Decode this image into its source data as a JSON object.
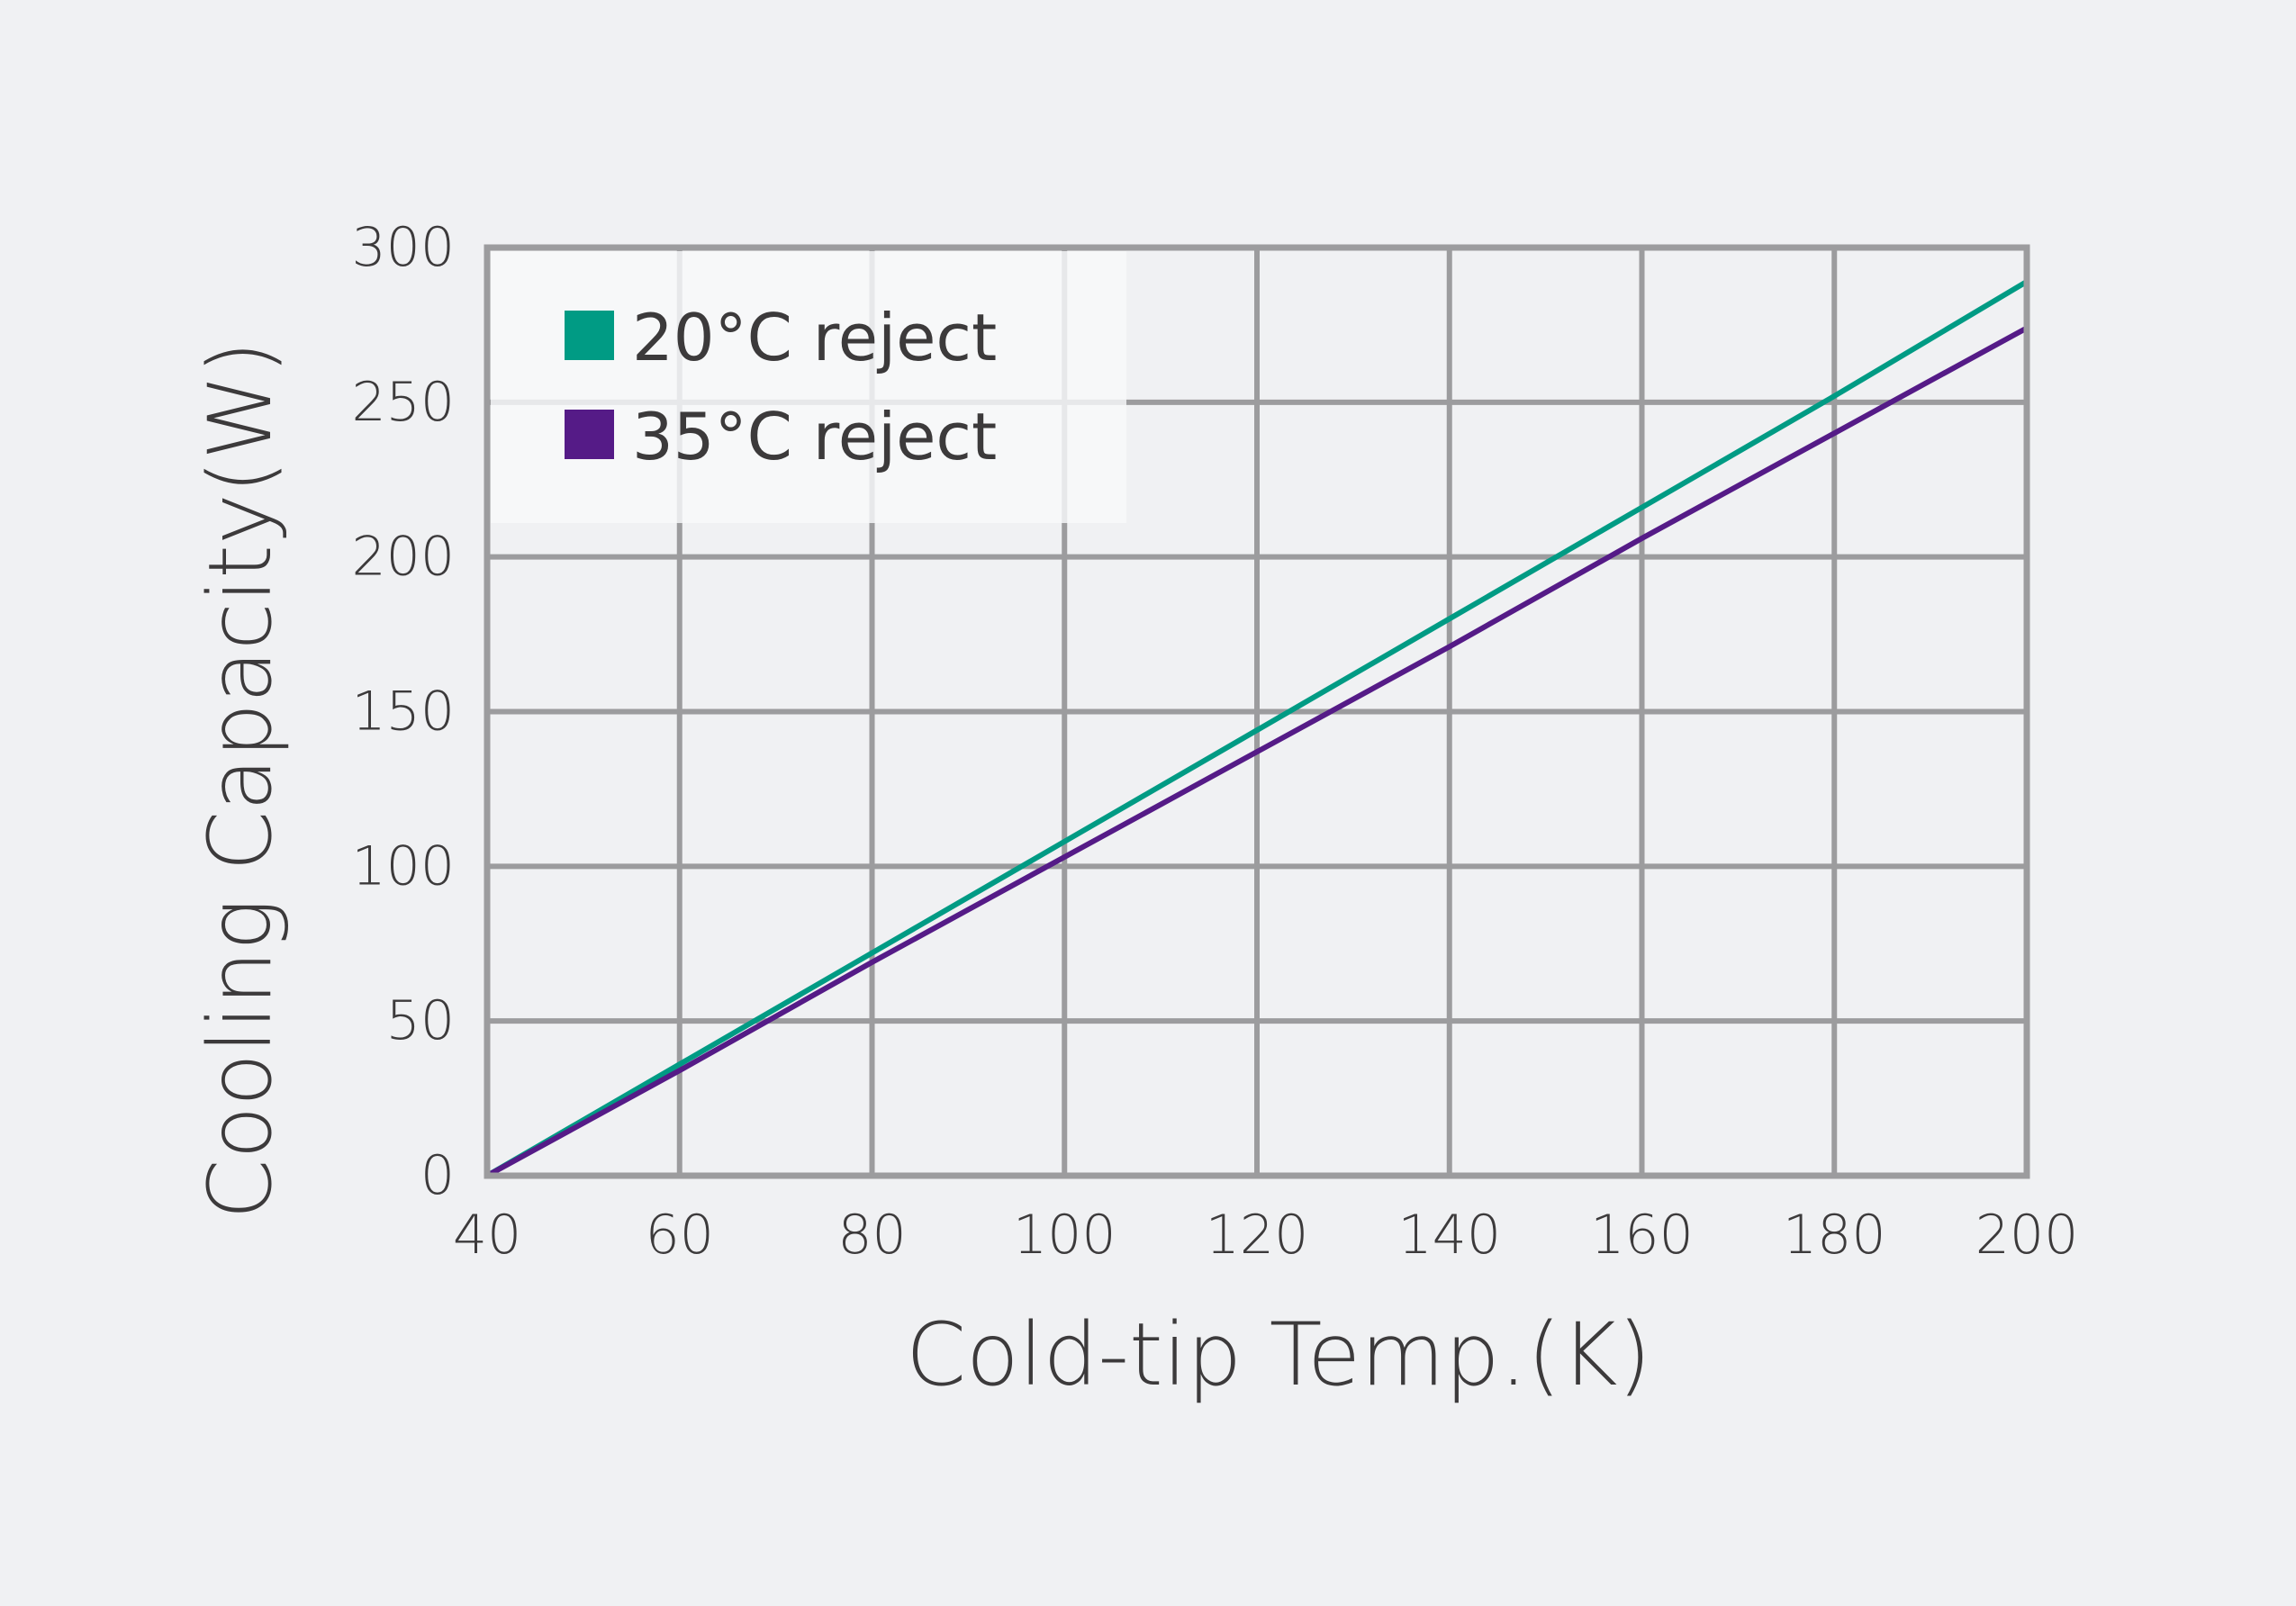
{
  "chart_data": {
    "type": "line",
    "title": "",
    "xlabel": "Cold-tip Temp.(K)",
    "ylabel": "Cooling Capacity(W)",
    "xlim": [
      40,
      200
    ],
    "ylim": [
      0,
      300
    ],
    "xticks": [
      40,
      60,
      80,
      100,
      120,
      140,
      160,
      180,
      200
    ],
    "yticks": [
      0,
      50,
      100,
      150,
      200,
      250,
      300
    ],
    "grid": true,
    "legend_position": "top-left",
    "series": [
      {
        "name": "20°C reject",
        "color": "#009b84",
        "x": [
          40,
          60,
          80,
          100,
          120,
          140,
          160,
          180,
          200
        ],
        "y": [
          0,
          36,
          72,
          108,
          144,
          180,
          216,
          252,
          289
        ]
      },
      {
        "name": "35°C reject",
        "color": "#551b87",
        "x": [
          40,
          60,
          80,
          100,
          120,
          140,
          160,
          180,
          200
        ],
        "y": [
          0,
          34,
          69,
          103,
          137,
          171,
          206,
          240,
          274
        ]
      }
    ]
  },
  "colors": {
    "background": "#f0f1f3",
    "grid": "#9c9c9e",
    "text": "#3c3a3b",
    "legend_background": "#f8f9fa"
  }
}
